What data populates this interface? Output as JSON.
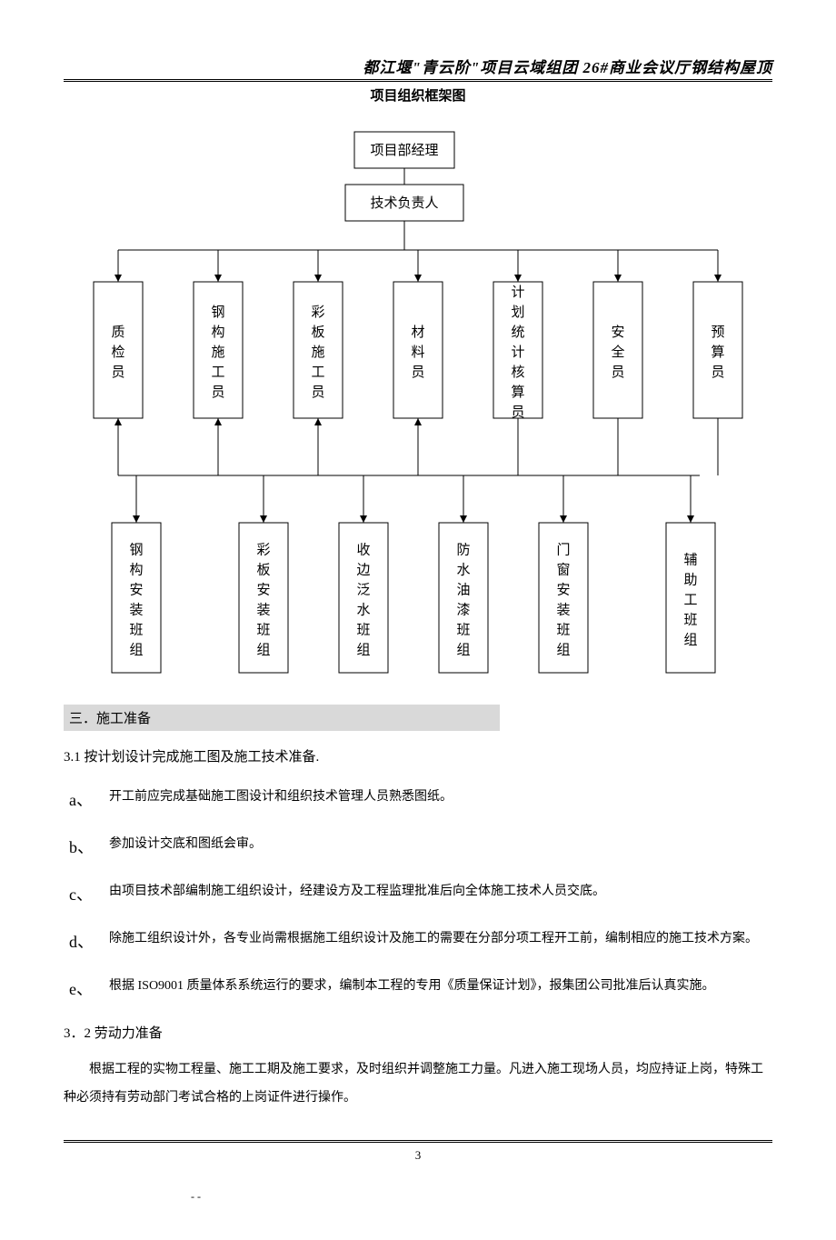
{
  "header": "都江堰\"青云阶\"项目云域组团 26#商业会议厅钢结构屋顶",
  "chart_title": "项目组织框架图",
  "org": {
    "top1": "项目部经理",
    "top2": "技术负责人",
    "row1": [
      "质检员",
      "钢构施工员",
      "彩板施工员",
      "材料员",
      "计划统计核算员",
      "安全员",
      "预算员"
    ],
    "row2": [
      "钢构安装班组",
      "彩板安装班组",
      "收边泛水班组",
      "防水油漆班组",
      "门窗安装班组",
      "辅助工班组"
    ]
  },
  "section_header": "三．施工准备",
  "p_3_1": "3.1 按计划设计完成施工图及施工技术准备.",
  "items": [
    {
      "m": "a、",
      "t": "开工前应完成基础施工图设计和组织技术管理人员熟悉图纸。"
    },
    {
      "m": "b、",
      "t": "参加设计交底和图纸会审。"
    },
    {
      "m": "c、",
      "t": "由项目技术部编制施工组织设计，经建设方及工程监理批准后向全体施工技术人员交底。"
    },
    {
      "m": "d、",
      "t": "除施工组织设计外，各专业尚需根据施工组织设计及施工的需要在分部分项工程开工前，编制相应的施工技术方案。"
    },
    {
      "m": "e、",
      "t": "根据 ISO9001 质量体系系统运行的要求，编制本工程的专用《质量保证计划》，报集团公司批准后认真实施。"
    }
  ],
  "p_3_2": "3．2 劳动力准备",
  "p_3_2_body": "根据工程的实物工程量、施工工期及施工要求，及时组织并调整施工力量。凡进入施工现场人员，均应持证上岗，特殊工种必须持有劳动部门考试合格的上岗证件进行操作。",
  "page_num": "3",
  "footer_sub": "-  -"
}
